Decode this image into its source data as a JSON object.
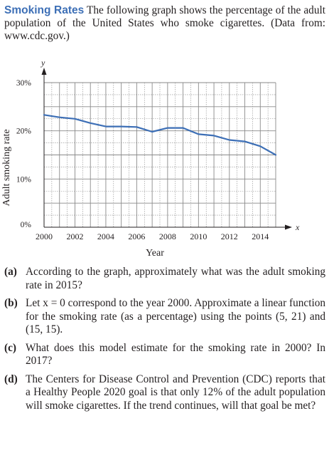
{
  "intro": {
    "heading": "Smoking Rates",
    "text": "The following graph shows the percentage of the adult population of the United States who smoke cigarettes. (Data from: www.cdc.gov.)"
  },
  "chart_data": {
    "type": "line",
    "x": [
      2000,
      2001,
      2002,
      2003,
      2004,
      2005,
      2006,
      2007,
      2008,
      2009,
      2010,
      2011,
      2012,
      2013,
      2014,
      2015
    ],
    "series": [
      {
        "values": [
          23.3,
          22.8,
          22.5,
          21.6,
          20.9,
          20.9,
          20.8,
          19.8,
          20.6,
          20.6,
          19.3,
          19.0,
          18.1,
          17.8,
          16.8,
          15.0
        ]
      }
    ],
    "xlim": [
      2000,
      2015
    ],
    "ylim": [
      0,
      30
    ],
    "x_ticks": [
      "2000",
      "2002",
      "2004",
      "2006",
      "2008",
      "2010",
      "2012",
      "2014"
    ],
    "y_ticks": [
      "0%",
      "10%",
      "20%",
      "30%"
    ],
    "xlabel": "Year",
    "ylabel": "Adult smoking rate",
    "x_axis_letter": "x",
    "y_axis_letter": "y",
    "grid": true,
    "line_color": "#3d6fb6",
    "grid_color": "#8a8a8a"
  },
  "questions": [
    {
      "label": "(a)",
      "text": "According to the graph, approximately what was the adult smoking rate in 2015?"
    },
    {
      "label": "(b)",
      "text": "Let x = 0 correspond to the year 2000. Approximate a linear function for the smoking rate (as a percentage) using the points (5, 21) and (15, 15)."
    },
    {
      "label": "(c)",
      "text": "What does this model estimate for the smoking rate in 2000? In 2017?"
    },
    {
      "label": "(d)",
      "text": "The Centers for Disease Control and Prevention (CDC) reports that a Healthy People 2020 goal is that only 12% of the adult population will smoke cigarettes. If the trend continues, will that goal be met?"
    }
  ]
}
